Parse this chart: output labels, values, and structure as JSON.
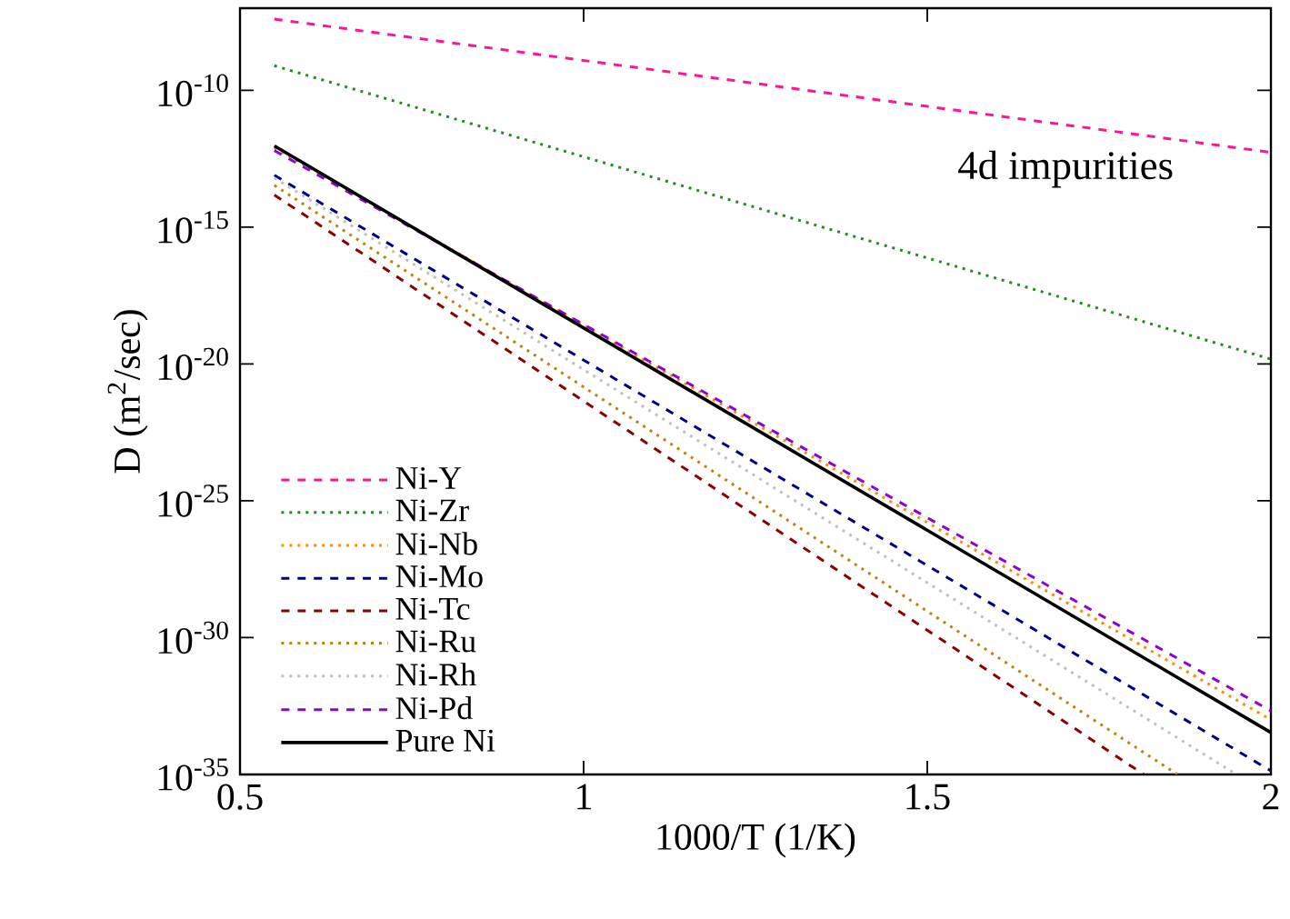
{
  "chart_data": {
    "type": "line",
    "xlabel": "1000/T (1/K)",
    "ylabel": "D (m$^{2}$/sec)",
    "annotations": [
      "4d impurities"
    ],
    "log": "y",
    "grid": false,
    "legend": "bottom left",
    "xlim": [
      0.5,
      2
    ],
    "xticks": [
      0.5,
      1,
      1.5,
      2
    ],
    "ylim": [
      1e-35,
      1e-07
    ],
    "yticks": [
      {
        "value": 1e-35,
        "label": "10$^{-35}$"
      },
      {
        "value": 1e-30,
        "label": "10$^{-30}$"
      },
      {
        "value": 1e-25,
        "label": "10$^{-25}$"
      },
      {
        "value": 1e-20,
        "label": "10$^{-20}$"
      },
      {
        "value": 1e-15,
        "label": "10$^{-15}$"
      },
      {
        "value": 1e-10,
        "label": "10$^{-10}$"
      }
    ],
    "series": [
      {
        "name": "Ni-Y",
        "color": "#ff1493",
        "line_style": "dashed",
        "x": [
          0.55,
          2
        ],
        "values": [
          3.98e-08,
          5.4e-13
        ]
      },
      {
        "name": "Ni-Zr",
        "color": "#228b22",
        "line_style": "dotted",
        "x": [
          0.55,
          2
        ],
        "values": [
          7.9e-10,
          1.5e-20
        ]
      },
      {
        "name": "Ni-Nb",
        "color": "#ff8c00",
        "line_style": "dotted",
        "x": [
          0.55,
          2
        ],
        "values": [
          7.9e-13,
          1e-33
        ]
      },
      {
        "name": "Ni-Mo",
        "color": "#00008b",
        "line_style": "dashed",
        "x": [
          0.55,
          2
        ],
        "values": [
          7.9e-14,
          1.35e-35
        ]
      },
      {
        "name": "Ni-Tc",
        "color": "#8b0000",
        "line_style": "dashed",
        "x": [
          0.55,
          1.815
        ],
        "values": [
          1.5e-14,
          1e-35
        ]
      },
      {
        "name": "Ni-Ru",
        "color": "#b8860b",
        "line_style": "dotted",
        "x": [
          0.55,
          1.864
        ],
        "values": [
          3.4e-14,
          1e-35
        ]
      },
      {
        "name": "Ni-Rh",
        "color": "#c0c0c0",
        "line_style": "dotted",
        "x": [
          0.55,
          1.95
        ],
        "values": [
          6.3e-14,
          1e-35
        ]
      },
      {
        "name": "Ni-Pd",
        "color": "#9400d3",
        "line_style": "dashed",
        "x": [
          0.55,
          2
        ],
        "values": [
          6.3e-13,
          2.1e-33
        ]
      },
      {
        "name": "Pure Ni",
        "color": "#000000",
        "line_style": "solid",
        "x": [
          0.55,
          2
        ],
        "values": [
          9.3e-13,
          3.4e-34
        ]
      }
    ]
  }
}
